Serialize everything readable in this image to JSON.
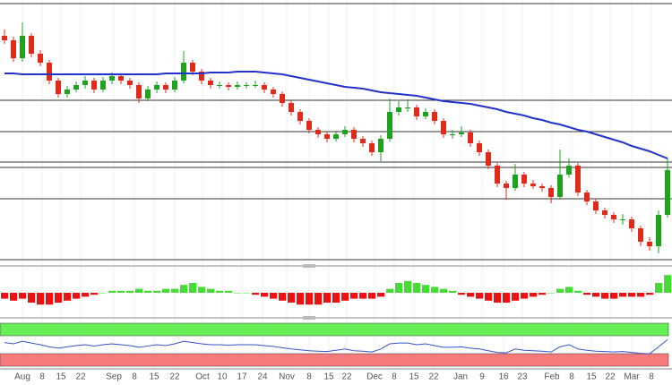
{
  "chart_data": {
    "type": "candlestick",
    "ylim": [
      0,
      295
    ],
    "levels": [
      291,
      183,
      148,
      114,
      108,
      73,
      5
    ],
    "up_color": "#1fa31f",
    "down_color": "#e02a1a",
    "ma_color": "#2233cc",
    "x_labels": [
      "Aug",
      "8",
      "15",
      "22",
      "Sep",
      "8",
      "15",
      "22",
      "Oct",
      "10",
      "17",
      "24",
      "Nov",
      "8",
      "15",
      "22",
      "Dec",
      "8",
      "15",
      "22",
      "Jan",
      "9",
      "16",
      "23",
      "Feb",
      "8",
      "15",
      "22",
      "Mar",
      "8"
    ],
    "ohlc": [
      [
        255,
        262,
        246,
        250
      ],
      [
        250,
        254,
        226,
        230
      ],
      [
        230,
        270,
        226,
        255
      ],
      [
        255,
        258,
        231,
        235
      ],
      [
        235,
        239,
        221,
        225
      ],
      [
        225,
        228,
        201,
        205
      ],
      [
        205,
        208,
        186,
        190
      ],
      [
        190,
        199,
        186,
        195
      ],
      [
        195,
        204,
        192,
        200
      ],
      [
        200,
        210,
        196,
        205
      ],
      [
        205,
        208,
        191,
        195
      ],
      [
        195,
        209,
        192,
        205
      ],
      [
        205,
        214,
        201,
        210
      ],
      [
        210,
        213,
        201,
        205
      ],
      [
        205,
        208,
        196,
        200
      ],
      [
        200,
        203,
        180,
        185
      ],
      [
        185,
        199,
        182,
        195
      ],
      [
        195,
        204,
        191,
        200
      ],
      [
        200,
        203,
        191,
        195
      ],
      [
        195,
        209,
        192,
        205
      ],
      [
        205,
        238,
        202,
        225
      ],
      [
        225,
        228,
        211,
        215
      ],
      [
        215,
        218,
        201,
        205
      ],
      [
        205,
        208,
        196,
        200
      ],
      [
        200,
        204,
        196,
        200
      ],
      [
        200,
        203,
        194,
        198
      ],
      [
        198,
        204,
        195,
        200
      ],
      [
        200,
        203,
        196,
        200
      ],
      [
        200,
        205,
        197,
        200
      ],
      [
        200,
        203,
        191,
        195
      ],
      [
        195,
        198,
        186,
        190
      ],
      [
        190,
        193,
        176,
        180
      ],
      [
        180,
        183,
        166,
        170
      ],
      [
        170,
        173,
        156,
        160
      ],
      [
        160,
        163,
        146,
        150
      ],
      [
        150,
        153,
        141,
        145
      ],
      [
        145,
        148,
        136,
        140
      ],
      [
        140,
        149,
        137,
        145
      ],
      [
        145,
        154,
        142,
        150
      ],
      [
        150,
        153,
        136,
        140
      ],
      [
        140,
        143,
        131,
        135
      ],
      [
        135,
        138,
        121,
        125
      ],
      [
        125,
        144,
        115,
        140
      ],
      [
        140,
        185,
        137,
        170
      ],
      [
        170,
        182,
        166,
        175
      ],
      [
        175,
        184,
        170,
        175
      ],
      [
        175,
        178,
        161,
        165
      ],
      [
        165,
        174,
        162,
        170
      ],
      [
        170,
        173,
        156,
        160
      ],
      [
        160,
        163,
        141,
        145
      ],
      [
        145,
        150,
        140,
        145
      ],
      [
        145,
        154,
        142,
        147
      ],
      [
        147,
        150,
        131,
        135
      ],
      [
        135,
        138,
        121,
        125
      ],
      [
        125,
        128,
        106,
        110
      ],
      [
        110,
        113,
        86,
        90
      ],
      [
        90,
        93,
        72,
        85
      ],
      [
        85,
        112,
        82,
        100
      ],
      [
        100,
        103,
        86,
        90
      ],
      [
        90,
        94,
        84,
        87
      ],
      [
        87,
        90,
        81,
        85
      ],
      [
        85,
        88,
        68,
        75
      ],
      [
        75,
        128,
        72,
        100
      ],
      [
        100,
        118,
        97,
        110
      ],
      [
        110,
        113,
        76,
        80
      ],
      [
        80,
        83,
        66,
        70
      ],
      [
        70,
        73,
        56,
        60
      ],
      [
        60,
        63,
        51,
        55
      ],
      [
        55,
        58,
        46,
        50
      ],
      [
        50,
        56,
        44,
        50
      ],
      [
        50,
        53,
        36,
        40
      ],
      [
        40,
        43,
        20,
        25
      ],
      [
        25,
        30,
        15,
        20
      ],
      [
        20,
        60,
        12,
        55
      ],
      [
        55,
        118,
        52,
        105
      ]
    ],
    "ma": [
      213,
      213,
      212,
      212,
      212,
      212,
      212,
      212,
      212,
      212,
      212,
      212,
      212,
      212,
      212,
      212,
      212,
      212,
      213,
      213,
      213,
      213,
      213,
      214,
      214,
      214,
      215,
      215,
      215,
      214,
      213,
      212,
      210,
      208,
      206,
      204,
      202,
      200,
      198,
      197,
      196,
      194,
      192,
      191,
      190,
      189,
      188,
      186,
      184,
      182,
      181,
      180,
      179,
      177,
      175,
      173,
      170,
      168,
      166,
      163,
      161,
      158,
      156,
      153,
      150,
      148,
      145,
      142,
      139,
      136,
      132,
      129,
      126,
      122,
      118
    ],
    "macd_ylim": [
      -10,
      10
    ],
    "macd_hist": [
      -3,
      -4,
      -3,
      -5,
      -6,
      -6,
      -5,
      -4,
      -3,
      -2,
      -1,
      0,
      1,
      1,
      1,
      2,
      1,
      1,
      2,
      2,
      4,
      5,
      3,
      2,
      1,
      1,
      0,
      0,
      -1,
      -2,
      -3,
      -4,
      -5,
      -6,
      -6,
      -6,
      -5,
      -5,
      -4,
      -3,
      -3,
      -3,
      -2,
      2,
      5,
      6,
      5,
      4,
      3,
      2,
      1,
      -1,
      -2,
      -3,
      -4,
      -5,
      -5,
      -4,
      -3,
      -2,
      -1,
      0,
      2,
      3,
      1,
      -1,
      -2,
      -3,
      -3,
      -2,
      -2,
      -2,
      -1,
      5,
      9
    ],
    "rsi_ylim": [
      0,
      100
    ],
    "rsi": [
      55,
      52,
      58,
      54,
      50,
      45,
      42,
      45,
      48,
      50,
      47,
      50,
      52,
      50,
      48,
      44,
      47,
      50,
      48,
      52,
      58,
      55,
      52,
      50,
      50,
      49,
      50,
      50,
      50,
      48,
      46,
      43,
      40,
      38,
      36,
      35,
      34,
      37,
      40,
      36,
      35,
      33,
      40,
      52,
      54,
      54,
      50,
      52,
      48,
      44,
      44,
      45,
      42,
      40,
      36,
      32,
      31,
      40,
      37,
      36,
      35,
      33,
      45,
      50,
      40,
      37,
      35,
      34,
      33,
      34,
      32,
      30,
      29,
      45,
      62
    ]
  }
}
